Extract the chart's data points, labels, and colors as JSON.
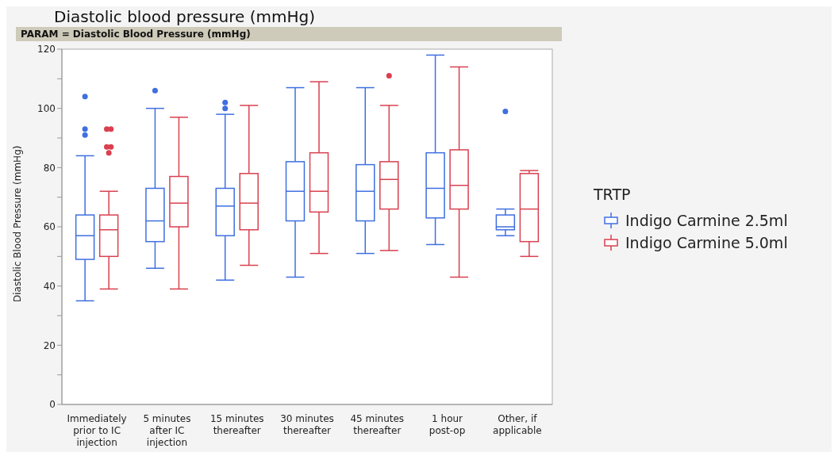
{
  "chart_data": {
    "type": "box",
    "title": "Diastolic blood pressure (mmHg)",
    "subtitle": "PARAM = Diastolic Blood Pressure (mmHg)",
    "ylabel": "Diastolic Blood Pressure (mmHg)",
    "legend_title": "TRTP",
    "legend": "right",
    "categories": [
      "Immediately prior to IC injection",
      "5 minutes after IC injection",
      "15 minutes thereafter",
      "30 minutes thereafter",
      "45 minutes thereafter",
      "1 hour post-op",
      "Other, if applicable"
    ],
    "ylim": [
      0,
      120
    ],
    "yticks": [
      0,
      {
        "value": 10,
        "label": null
      },
      20,
      {
        "value": 30,
        "label": null
      },
      40,
      {
        "value": 50,
        "label": null
      },
      60,
      {
        "value": 70,
        "label": null
      },
      80,
      {
        "value": 90,
        "label": null
      },
      100,
      {
        "value": 110,
        "label": null
      },
      120
    ],
    "series": [
      {
        "name": "Indigo Carmine 2.5ml",
        "color": "#3f6fe0",
        "boxes": [
          {
            "low": 35,
            "q1": 49,
            "median": 57,
            "q3": 64,
            "high": 84,
            "outliers": [
              91,
              93,
              104
            ]
          },
          {
            "low": 46,
            "q1": 55,
            "median": 62,
            "q3": 73,
            "high": 100,
            "outliers": [
              106
            ]
          },
          {
            "low": 42,
            "q1": 57,
            "median": 67,
            "q3": 73,
            "high": 98,
            "outliers": [
              100,
              102
            ]
          },
          {
            "low": 43,
            "q1": 62,
            "median": 72,
            "q3": 82,
            "high": 107
          },
          {
            "low": 51,
            "q1": 62,
            "median": 72,
            "q3": 81,
            "high": 107
          },
          {
            "low": 54,
            "q1": 63,
            "median": 73,
            "q3": 85,
            "high": 118
          },
          {
            "low": 57,
            "q1": 59,
            "median": 60,
            "q3": 64,
            "high": 66,
            "outliers": [
              99
            ]
          }
        ]
      },
      {
        "name": "Indigo Carmine 5.0ml",
        "color": "#d9404f",
        "boxes": [
          {
            "low": 39,
            "q1": 50,
            "median": 59,
            "q3": 64,
            "high": 72,
            "outliers": [
              85,
              87,
              87,
              93,
              93
            ]
          },
          {
            "low": 39,
            "q1": 60,
            "median": 68,
            "q3": 77,
            "high": 97
          },
          {
            "low": 47,
            "q1": 59,
            "median": 68,
            "q3": 78,
            "high": 101
          },
          {
            "low": 51,
            "q1": 65,
            "median": 72,
            "q3": 85,
            "high": 109
          },
          {
            "low": 52,
            "q1": 66,
            "median": 76,
            "q3": 82,
            "high": 101,
            "outliers": [
              111
            ]
          },
          {
            "low": 43,
            "q1": 66,
            "median": 74,
            "q3": 86,
            "high": 114
          },
          {
            "low": 50,
            "q1": 55,
            "median": 66,
            "q3": 78,
            "high": 79
          }
        ]
      }
    ]
  }
}
